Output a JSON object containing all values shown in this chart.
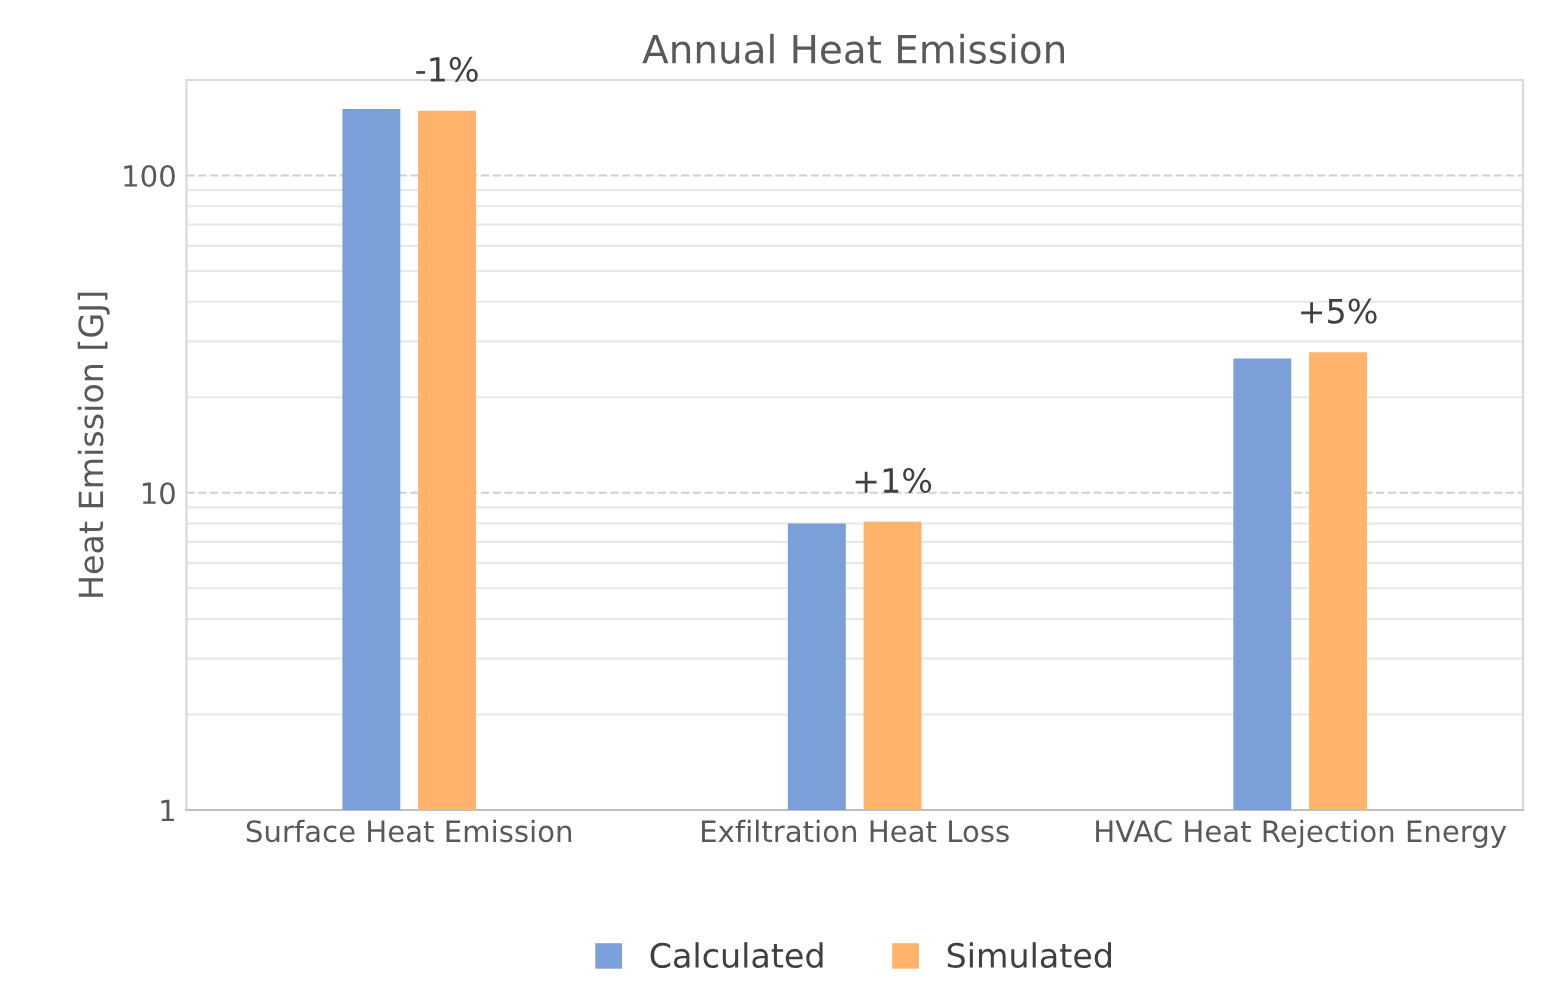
{
  "chart_data": {
    "type": "bar",
    "title": "Annual Heat Emission",
    "ylabel": "Heat Emission [GJ]",
    "categories": [
      "Surface Heat Emission",
      "Exfiltration Heat Loss",
      "HVAC Heat Rejection Energy"
    ],
    "series": [
      {
        "name": "Calculated",
        "color": "#7b9fd8",
        "values": [
          162,
          8.0,
          26.5
        ]
      },
      {
        "name": "Simulated",
        "color": "#ffb36b",
        "values": [
          160,
          8.1,
          27.7
        ]
      }
    ],
    "log": true,
    "ylim": [
      1,
      200
    ],
    "yticks": [
      1,
      10,
      100
    ],
    "grid": "y",
    "legend": "bottom",
    "annotations": [
      {
        "text": "-1%",
        "x": "Surface Heat Emission",
        "y": 160
      },
      {
        "text": "+1%",
        "x": "Exfiltration Heat Loss",
        "y": 8.1
      },
      {
        "text": "+5%",
        "x": "HVAC Heat Rejection Energy",
        "y": 27.7
      }
    ]
  }
}
